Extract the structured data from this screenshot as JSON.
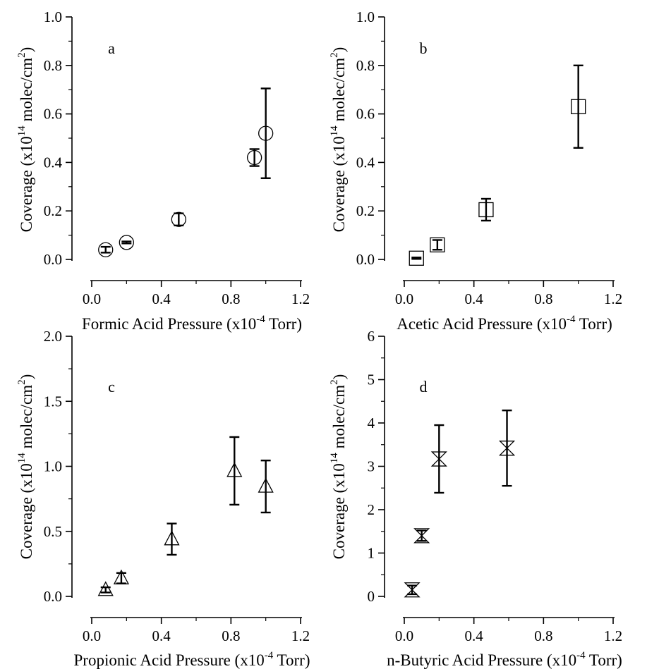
{
  "chart_data": [
    {
      "type": "scatter",
      "panel_label": "a",
      "xlabel": {
        "pre": "Formic Acid Pressure (x10",
        "exp": "-4",
        "post": " Torr)"
      },
      "ylabel": {
        "pre": "Coverage (x10",
        "exp": "14",
        "mid": " molec/cm",
        "exp2": "2",
        "post": ")"
      },
      "xlim": [
        0,
        1.2
      ],
      "ylim": [
        0,
        1.0
      ],
      "xticks": [
        0.0,
        0.4,
        0.8,
        1.2
      ],
      "xtick_labels": [
        "0.0",
        "0.4",
        "0.8",
        "1.2"
      ],
      "yticks": [
        0.0,
        0.2,
        0.4,
        0.6,
        0.8,
        1.0
      ],
      "ytick_labels": [
        "0.0",
        "0.2",
        "0.4",
        "0.6",
        "0.8",
        "1.0"
      ],
      "marker": "circle",
      "points": [
        {
          "x": 0.08,
          "y": 0.04,
          "err": 0.012
        },
        {
          "x": 0.2,
          "y": 0.07,
          "err": 0.004
        },
        {
          "x": 0.5,
          "y": 0.165,
          "err": 0.025
        },
        {
          "x": 0.935,
          "y": 0.42,
          "err": 0.035
        },
        {
          "x": 1.0,
          "y": 0.52,
          "err": 0.185
        }
      ]
    },
    {
      "type": "scatter",
      "panel_label": "b",
      "xlabel": {
        "pre": "Acetic Acid Pressure (x10",
        "exp": "-4",
        "post": " Torr)"
      },
      "ylabel": {
        "pre": "Coverage (x10",
        "exp": "14",
        "mid": " molec/cm",
        "exp2": "2",
        "post": ")"
      },
      "xlim": [
        0,
        1.2
      ],
      "ylim": [
        0,
        1.0
      ],
      "xticks": [
        0.0,
        0.4,
        0.8,
        1.2
      ],
      "xtick_labels": [
        "0.0",
        "0.4",
        "0.8",
        "1.2"
      ],
      "yticks": [
        0.0,
        0.2,
        0.4,
        0.6,
        0.8,
        1.0
      ],
      "ytick_labels": [
        "0.0",
        "0.2",
        "0.4",
        "0.6",
        "0.8",
        "1.0"
      ],
      "marker": "square",
      "points": [
        {
          "x": 0.07,
          "y": 0.005,
          "err": 0.003
        },
        {
          "x": 0.19,
          "y": 0.06,
          "err": 0.02
        },
        {
          "x": 0.47,
          "y": 0.205,
          "err": 0.045
        },
        {
          "x": 1.0,
          "y": 0.63,
          "err": 0.17
        }
      ]
    },
    {
      "type": "scatter",
      "panel_label": "c",
      "xlabel": {
        "pre": "Propionic Acid Pressure (x10",
        "exp": "-4",
        "post": " Torr)"
      },
      "ylabel": {
        "pre": "Coverage (x10",
        "exp": "14",
        "mid": " molec/cm",
        "exp2": "2",
        "post": ")"
      },
      "xlim": [
        0,
        1.2
      ],
      "ylim": [
        0,
        2.0
      ],
      "xticks": [
        0.0,
        0.4,
        0.8,
        1.2
      ],
      "xtick_labels": [
        "0.0",
        "0.4",
        "0.8",
        "1.2"
      ],
      "yticks": [
        0.0,
        0.5,
        1.0,
        1.5,
        2.0
      ],
      "ytick_labels": [
        "0.0",
        "0.5",
        "1.0",
        "1.5",
        "2.0"
      ],
      "marker": "triangle",
      "points": [
        {
          "x": 0.08,
          "y": 0.05,
          "err": 0.02
        },
        {
          "x": 0.17,
          "y": 0.14,
          "err": 0.04
        },
        {
          "x": 0.46,
          "y": 0.44,
          "err": 0.12
        },
        {
          "x": 0.82,
          "y": 0.965,
          "err": 0.26
        },
        {
          "x": 1.0,
          "y": 0.845,
          "err": 0.2
        }
      ]
    },
    {
      "type": "scatter",
      "panel_label": "d",
      "xlabel": {
        "pre": "n-Butyric Acid Pressure (x10",
        "exp": "-4",
        "post": " Torr)"
      },
      "ylabel": {
        "pre": "Coverage (x10",
        "exp": "14",
        "mid": " molec/cm",
        "exp2": "2",
        "post": ")"
      },
      "xlim": [
        0,
        1.2
      ],
      "ylim": [
        0,
        6
      ],
      "xticks": [
        0.0,
        0.4,
        0.8,
        1.2
      ],
      "xtick_labels": [
        "0.0",
        "0.4",
        "0.8",
        "1.2"
      ],
      "yticks": [
        0,
        1,
        2,
        3,
        4,
        5,
        6
      ],
      "ytick_labels": [
        "0",
        "1",
        "2",
        "3",
        "4",
        "5",
        "6"
      ],
      "marker": "hourglass",
      "points": [
        {
          "x": 0.045,
          "y": 0.15,
          "err": 0.1
        },
        {
          "x": 0.1,
          "y": 1.4,
          "err": 0.12
        },
        {
          "x": 0.2,
          "y": 3.17,
          "err": 0.78
        },
        {
          "x": 0.59,
          "y": 3.42,
          "err": 0.87
        }
      ]
    }
  ]
}
